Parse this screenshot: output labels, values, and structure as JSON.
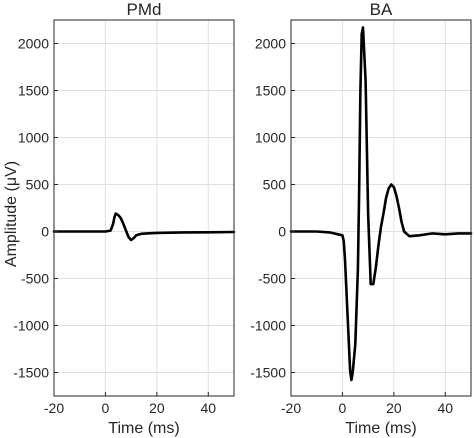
{
  "figure": {
    "ylabel": "Amplitude (μV)",
    "xlabel": "Time (ms)"
  },
  "chart_data": [
    {
      "type": "line",
      "title": "PMd",
      "xlabel": "Time (ms)",
      "ylabel": "Amplitude (μV)",
      "xlim": [
        -20,
        50
      ],
      "ylim": [
        -1750,
        2250
      ],
      "xticks": [
        -20,
        0,
        20,
        40
      ],
      "yticks": [
        -1500,
        -1000,
        -500,
        0,
        500,
        1000,
        1500,
        2000
      ],
      "xtick_labels": [
        "-20",
        "0",
        "20",
        "40"
      ],
      "ytick_labels": [
        "-1500",
        "-1000",
        "-500",
        "0",
        "500",
        "1000",
        "1500",
        "2000"
      ],
      "grid": true,
      "legend": "none",
      "series": [
        {
          "color": "#000000",
          "x": [
            -20,
            -10,
            0,
            2,
            3,
            3.5,
            4,
            5,
            6,
            7,
            8,
            9,
            10,
            11,
            12,
            14,
            16,
            20,
            30,
            40,
            50
          ],
          "y": [
            0,
            0,
            0,
            10,
            80,
            150,
            190,
            175,
            140,
            80,
            10,
            -60,
            -90,
            -70,
            -40,
            -25,
            -20,
            -15,
            -10,
            -8,
            -5
          ]
        }
      ]
    },
    {
      "type": "line",
      "title": "BA",
      "xlabel": "Time (ms)",
      "ylabel": "",
      "xlim": [
        -20,
        50
      ],
      "ylim": [
        -1750,
        2250
      ],
      "xticks": [
        -20,
        0,
        20,
        40
      ],
      "yticks": [
        -1500,
        -1000,
        -500,
        0,
        500,
        1000,
        1500,
        2000
      ],
      "xtick_labels": [
        "-20",
        "0",
        "20",
        "40"
      ],
      "ytick_labels": [
        "-1500",
        "-1000",
        "-500",
        "0",
        "500",
        "1000",
        "1500",
        "2000"
      ],
      "grid": true,
      "legend": "none",
      "series": [
        {
          "color": "#000000",
          "x": [
            -20,
            -10,
            -5,
            0,
            0.5,
            1,
            2,
            3,
            3.5,
            4,
            5,
            6,
            6.5,
            7,
            7.5,
            8,
            9,
            10,
            11,
            12,
            13,
            14,
            15,
            16,
            17,
            18,
            19,
            20,
            21,
            22,
            23,
            24,
            26,
            30,
            35,
            40,
            45,
            50
          ],
          "y": [
            0,
            0,
            -10,
            -40,
            -100,
            -300,
            -900,
            -1480,
            -1580,
            -1500,
            -1200,
            -400,
            400,
            1500,
            2100,
            2170,
            1600,
            200,
            -560,
            -560,
            -380,
            -150,
            50,
            200,
            360,
            460,
            500,
            470,
            380,
            250,
            100,
            0,
            -50,
            -40,
            -20,
            -30,
            -20,
            -20
          ]
        }
      ]
    }
  ]
}
